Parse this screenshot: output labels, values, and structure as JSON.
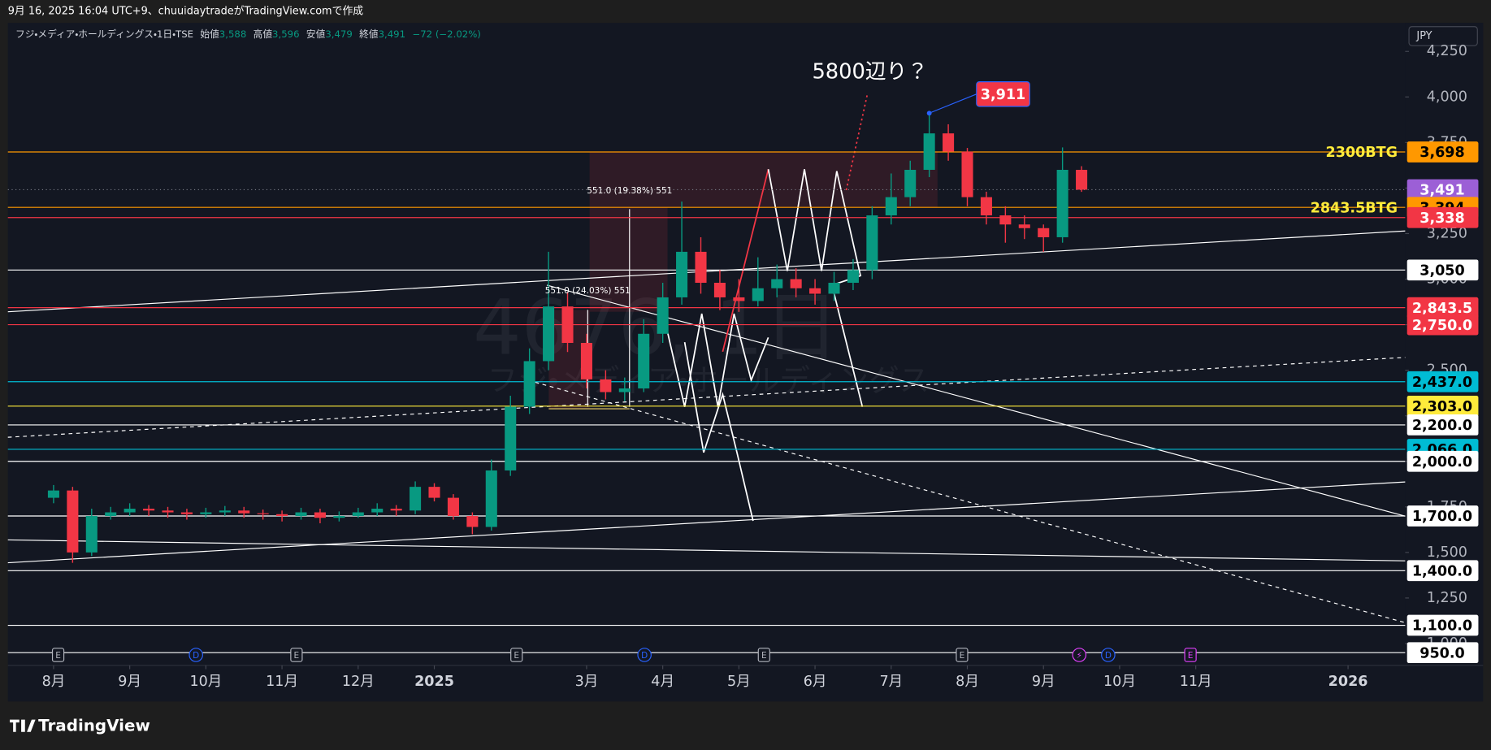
{
  "header": {
    "caption": "9月 16, 2025 16:04 UTC+9、chuuidaytradeがTradingView.comで作成"
  },
  "symbol": {
    "name": "フジ・メディア・ホールディングス・1日・TSE",
    "ohlc": [
      {
        "label": "始値",
        "value": "3,588"
      },
      {
        "label": "高値",
        "value": "3,596"
      },
      {
        "label": "安値",
        "value": "3,479"
      },
      {
        "label": "終値",
        "value": "3,491"
      }
    ],
    "change": "−72 (−2.02%)"
  },
  "currency": "JPY",
  "watermark": {
    "symbol": "4676, 1日",
    "name": "フジ・メディア・ホールディングス"
  },
  "brand": "TradingView",
  "chart_data": {
    "type": "candlestick",
    "up_color": "#089981",
    "down_color": "#f23645",
    "x": [
      0,
      0.25,
      0.5,
      0.75,
      1,
      1.25,
      1.5,
      1.75,
      2,
      2.25,
      2.5,
      2.75,
      3,
      3.25,
      3.5,
      3.75,
      4,
      4.25,
      4.5,
      4.75,
      5,
      5.25,
      5.5,
      5.75,
      6,
      6.25,
      6.5,
      6.75,
      7,
      7.25,
      7.5,
      7.75,
      8,
      8.25,
      8.5,
      8.75,
      9,
      9.25,
      9.5,
      9.75,
      10,
      10.25,
      10.5,
      10.75,
      11,
      11.25,
      11.5,
      11.75,
      12,
      12.25,
      12.5,
      12.75,
      13,
      13.25,
      13.5
    ],
    "open": [
      1800,
      1840,
      1500,
      1700,
      1720,
      1740,
      1730,
      1720,
      1710,
      1720,
      1730,
      1715,
      1710,
      1700,
      1720,
      1690,
      1700,
      1720,
      1740,
      1730,
      1860,
      1800,
      1700,
      1640,
      1950,
      2300,
      2550,
      2850,
      2650,
      2450,
      2380,
      2400,
      2700,
      2900,
      3150,
      2980,
      2900,
      2880,
      2950,
      3000,
      2950,
      2920,
      2980,
      3050,
      3350,
      3450,
      3600,
      3800,
      3700,
      3450,
      3350,
      3300,
      3280,
      3230,
      3600
    ],
    "high": [
      1870,
      1860,
      1740,
      1750,
      1770,
      1760,
      1750,
      1740,
      1745,
      1755,
      1750,
      1735,
      1730,
      1745,
      1740,
      1725,
      1745,
      1770,
      1760,
      1890,
      1880,
      1820,
      1720,
      2010,
      2360,
      2620,
      3150,
      2930,
      2700,
      2500,
      2460,
      2780,
      2980,
      3426,
      3230,
      3050,
      3000,
      3120,
      3080,
      3060,
      3000,
      3040,
      3110,
      3400,
      3580,
      3650,
      3911,
      3850,
      3720,
      3480,
      3400,
      3350,
      3300,
      3723,
      3620
    ],
    "low": [
      1770,
      1443,
      1480,
      1680,
      1700,
      1700,
      1690,
      1680,
      1690,
      1700,
      1690,
      1680,
      1670,
      1680,
      1660,
      1670,
      1690,
      1700,
      1700,
      1710,
      1780,
      1680,
      1600,
      1620,
      1920,
      2260,
      2500,
      2600,
      2400,
      2340,
      2330,
      2380,
      2650,
      2860,
      2920,
      2830,
      2820,
      2850,
      2900,
      2900,
      2860,
      2880,
      2940,
      3000,
      3300,
      3400,
      3560,
      3650,
      3400,
      3300,
      3200,
      3220,
      3150,
      3200,
      3479
    ],
    "close": [
      1840,
      1500,
      1700,
      1720,
      1740,
      1730,
      1720,
      1710,
      1720,
      1730,
      1715,
      1710,
      1700,
      1720,
      1690,
      1700,
      1720,
      1740,
      1730,
      1860,
      1800,
      1700,
      1640,
      1950,
      2300,
      2550,
      2850,
      2650,
      2450,
      2380,
      2400,
      2700,
      2900,
      3150,
      2980,
      2900,
      2880,
      2950,
      3000,
      2950,
      2920,
      2980,
      3050,
      3350,
      3450,
      3600,
      3800,
      3700,
      3450,
      3350,
      3300,
      3280,
      3230,
      3600,
      3491
    ],
    "xlim": [
      -0.6,
      17.75
    ],
    "xticks": [
      {
        "value": 0,
        "label": "8月"
      },
      {
        "value": 1,
        "label": "9月"
      },
      {
        "value": 2,
        "label": "10月"
      },
      {
        "value": 3,
        "label": "11月"
      },
      {
        "value": 4,
        "label": "12月"
      },
      {
        "value": 5,
        "label": "2025"
      },
      {
        "value": 7,
        "label": "3月"
      },
      {
        "value": 8,
        "label": "4月"
      },
      {
        "value": 9,
        "label": "5月"
      },
      {
        "value": 10,
        "label": "6月"
      },
      {
        "value": 11,
        "label": "7月"
      },
      {
        "value": 12,
        "label": "8月"
      },
      {
        "value": 13,
        "label": "9月"
      },
      {
        "value": 14,
        "label": "10月"
      },
      {
        "value": 15,
        "label": "11月"
      },
      {
        "value": 17,
        "label": "2026"
      }
    ],
    "ylim": [
      880,
      4386
    ],
    "yticks": [
      {
        "value": 1000,
        "label": "1,000"
      },
      {
        "value": 1250,
        "label": "1,250"
      },
      {
        "value": 1500,
        "label": "1,500"
      },
      {
        "value": 1750,
        "label": "1,750"
      },
      {
        "value": 2000,
        "label": "2,000"
      },
      {
        "value": 2250,
        "label": "2,250"
      },
      {
        "value": 2500,
        "label": "2,500"
      },
      {
        "value": 2750,
        "label": "2,750"
      },
      {
        "value": 3000,
        "label": "3,000"
      },
      {
        "value": 3250,
        "label": "3,250"
      },
      {
        "value": 3500,
        "label": "3,500"
      },
      {
        "value": 3750,
        "label": "3,750"
      },
      {
        "value": 4000,
        "label": "4,000"
      },
      {
        "value": 4250,
        "label": "4,250"
      }
    ],
    "grid": false,
    "price_lines": [
      {
        "value": 3698,
        "label": "3,698",
        "color": "#ff9800",
        "text_color": "#000000",
        "name": "2300BTG",
        "name_color": "#ffeb3b"
      },
      {
        "value": 3491,
        "label": "3,491",
        "color": "#9c5fd6",
        "text_color": "#ffffff",
        "style": "dotted"
      },
      {
        "value": 3394,
        "label": "3,394",
        "color": "#ff9800",
        "text_color": "#000000",
        "name": "2843.5BTG",
        "name_color": "#ffeb3b"
      },
      {
        "value": 3338,
        "label": "3,338",
        "color": "#f23645",
        "text_color": "#ffffff"
      },
      {
        "value": 3050,
        "label": "3,050",
        "color": "#ffffff",
        "text_color": "#000000"
      },
      {
        "value": 2843.5,
        "label": "2,843.5",
        "color": "#f23645",
        "text_color": "#ffffff"
      },
      {
        "value": 2750,
        "label": "2,750.0",
        "color": "#f23645",
        "text_color": "#ffffff"
      },
      {
        "value": 2437,
        "label": "2,437.0",
        "color": "#00bcd4",
        "text_color": "#000000"
      },
      {
        "value": 2303,
        "label": "2,303.0",
        "color": "#ffeb3b",
        "text_color": "#000000"
      },
      {
        "value": 2200,
        "label": "2,200.0",
        "color": "#ffffff",
        "text_color": "#000000"
      },
      {
        "value": 2066,
        "label": "2,066.0",
        "color": "#00bcd4",
        "text_color": "#000000"
      },
      {
        "value": 2000,
        "label": "2,000.0",
        "color": "#ffffff",
        "text_color": "#000000"
      },
      {
        "value": 1700,
        "label": "1,700.0",
        "color": "#ffffff",
        "text_color": "#000000"
      },
      {
        "value": 1400,
        "label": "1,400.0",
        "color": "#ffffff",
        "text_color": "#000000"
      },
      {
        "value": 1100,
        "label": "1,100.0",
        "color": "#ffffff",
        "text_color": "#000000"
      },
      {
        "value": 950,
        "label": "950.0",
        "color": "#ffffff",
        "text_color": "#000000"
      }
    ],
    "events": [
      {
        "x": 0.06,
        "label": "E",
        "color": "#b2b5be"
      },
      {
        "x": 1.87,
        "label": "D",
        "color": "#2962ff"
      },
      {
        "x": 3.19,
        "label": "E",
        "color": "#b2b5be"
      },
      {
        "x": 6.08,
        "label": "E",
        "color": "#b2b5be"
      },
      {
        "x": 7.76,
        "label": "D",
        "color": "#2962ff"
      },
      {
        "x": 9.33,
        "label": "E",
        "color": "#b2b5be"
      },
      {
        "x": 11.93,
        "label": "E",
        "color": "#b2b5be"
      },
      {
        "x": 13.47,
        "label": "⚡",
        "color": "#e040fb"
      },
      {
        "x": 13.85,
        "label": "D",
        "color": "#2962ff"
      },
      {
        "x": 14.93,
        "label": "E",
        "color": "#e040fb"
      }
    ],
    "annotations": {
      "target": "5800辺り？",
      "high_callout": {
        "x": 11.5,
        "value": 3911,
        "label": "3,911"
      },
      "measures": [
        "551.0 (19.38%) 551",
        "551.0 (24.03%) 551"
      ]
    }
  }
}
